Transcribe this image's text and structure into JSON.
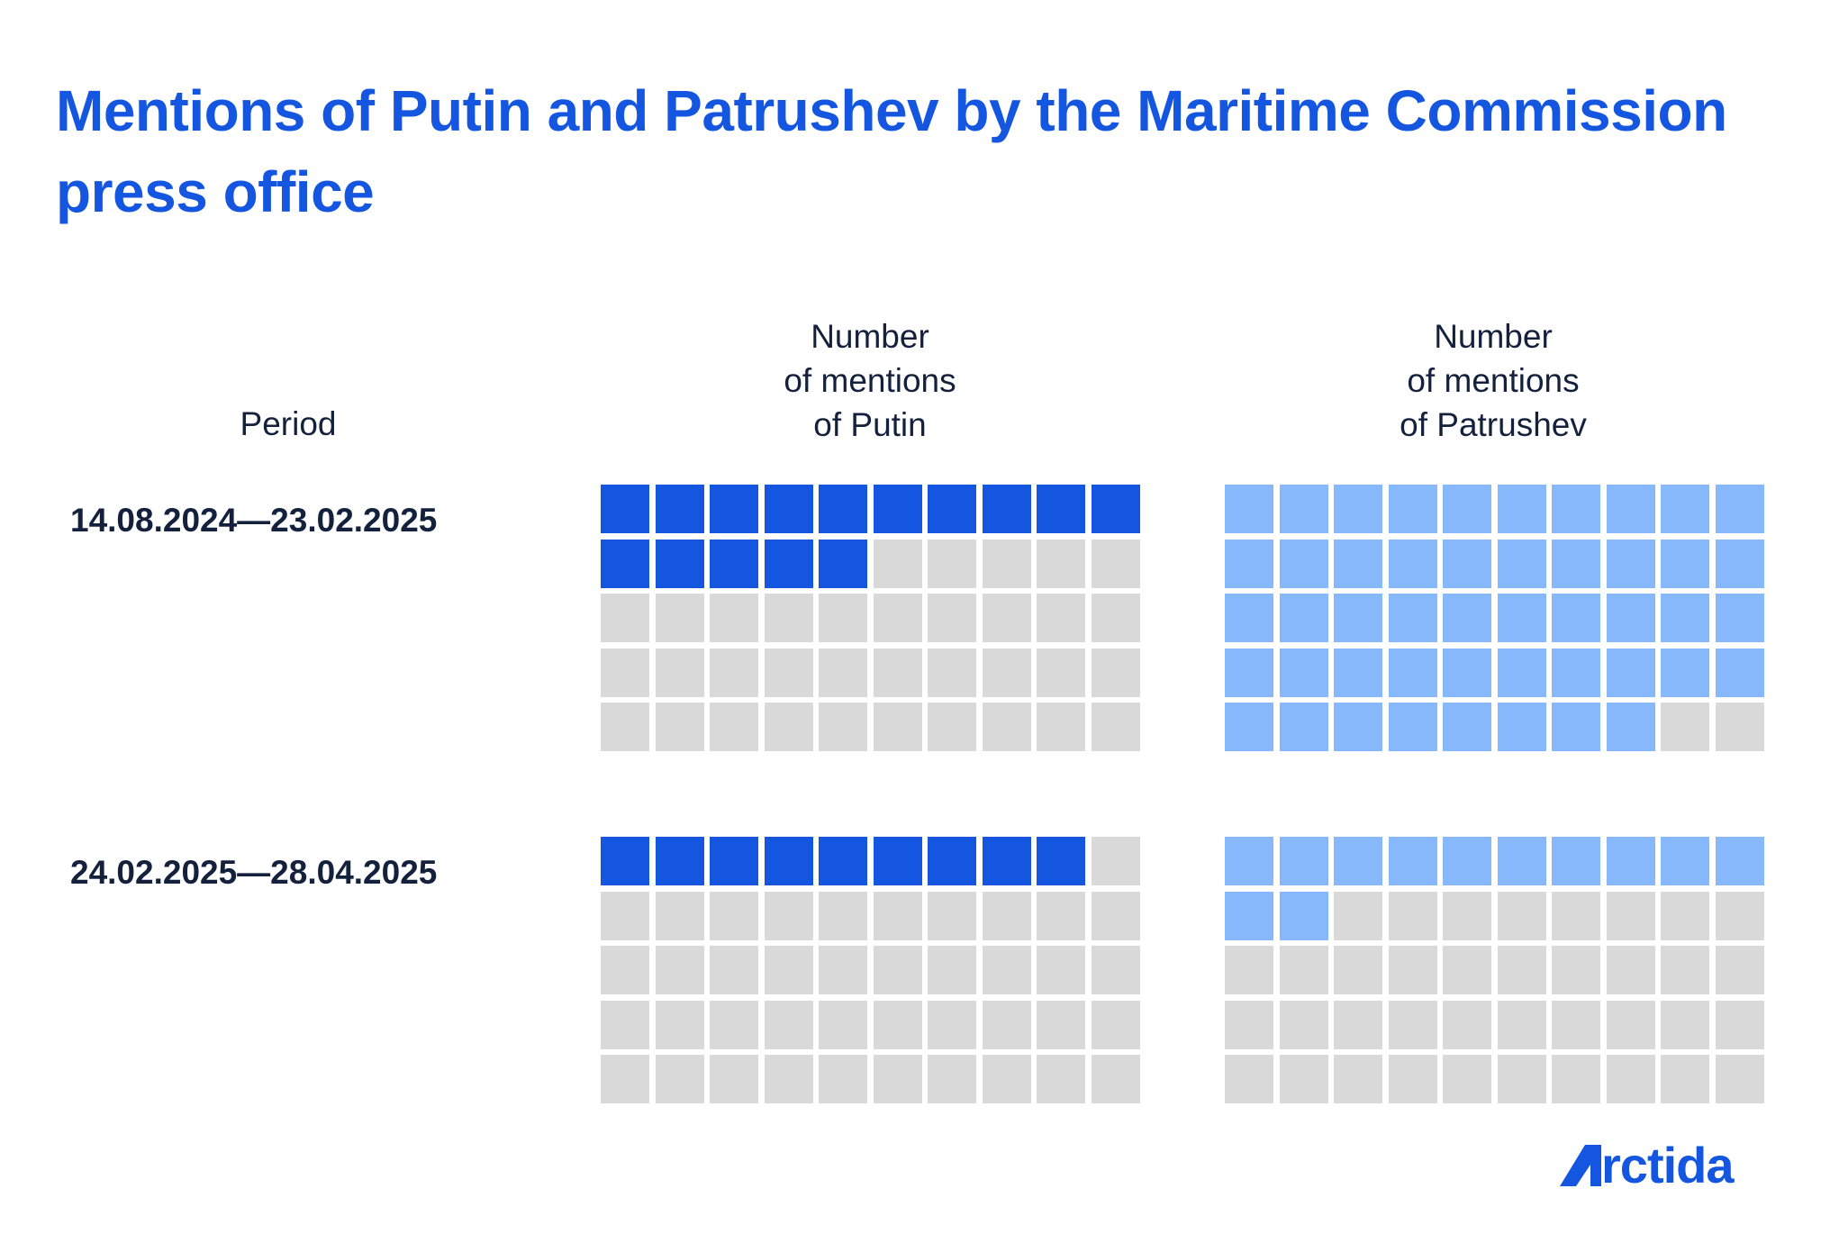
{
  "title": "Mentions of Putin and Patrushev by the Maritime Commission press office",
  "headers": {
    "period": "Period",
    "putin": [
      "Number",
      "of mentions",
      "of Putin"
    ],
    "patrushev": [
      "Number",
      "of mentions",
      "of Patrushev"
    ]
  },
  "colors": {
    "putin": "#1556e0",
    "patrushev": "#86b8fb",
    "empty": "#d9d9d9",
    "text": "#14213d"
  },
  "chart_data": {
    "type": "waffle",
    "title": "Mentions of Putin and Patrushev by the Maritime Commission press office",
    "units_per_grid": 50,
    "rows": 5,
    "columns": 10,
    "periods": [
      "14.08.2024—23.02.2025",
      "24.02.2025—28.04.2025"
    ],
    "series": [
      {
        "name": "Number of mentions of Putin",
        "values": [
          15,
          9
        ]
      },
      {
        "name": "Number of mentions of Patrushev",
        "values": [
          48,
          12
        ]
      }
    ]
  },
  "logo": "rctida"
}
